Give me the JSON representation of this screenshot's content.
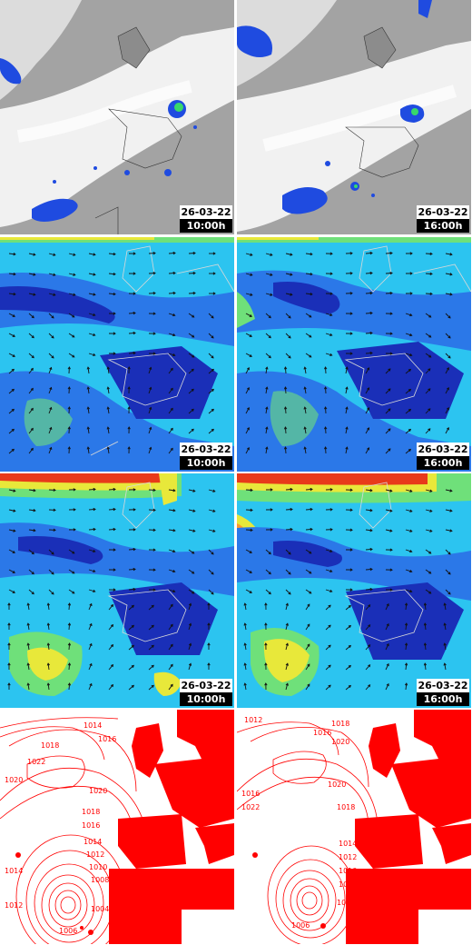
{
  "panels": [
    {
      "row": "satellite",
      "date": "26-03-22",
      "time": "10:00h"
    },
    {
      "row": "satellite",
      "date": "26-03-22",
      "time": "16:00h"
    },
    {
      "row": "wind-mid",
      "date": "26-03-22",
      "time": "10:00h"
    },
    {
      "row": "wind-mid",
      "date": "26-03-22",
      "time": "16:00h"
    },
    {
      "row": "wind-upper",
      "date": "26-03-22",
      "time": "10:00h"
    },
    {
      "row": "wind-upper",
      "date": "26-03-22",
      "time": "16:00h"
    },
    {
      "row": "pressure",
      "date": "",
      "time": ""
    },
    {
      "row": "pressure",
      "date": "",
      "time": ""
    }
  ],
  "isobars": {
    "left": [
      "1014",
      "1018",
      "1016",
      "1022",
      "1020",
      "1020",
      "1018",
      "1016",
      "1014",
      "1012",
      "1010",
      "1008",
      "1006",
      "1004",
      "1012",
      "1014"
    ],
    "right": [
      "1012",
      "1016",
      "1020",
      "1018",
      "1016",
      "1022",
      "1020",
      "1018",
      "1014",
      "1012",
      "1010",
      "1008",
      "1006",
      "1004"
    ]
  },
  "colors": {
    "land_grey": "#9e9e9e",
    "cloud_white": "#f2f2f2",
    "precip_blue": "#1f4be0",
    "precip_green": "#38d86a",
    "wind_deep_blue": "#1a2fb8",
    "wind_blue": "#2b78e8",
    "wind_cyan": "#2cc4f0",
    "wind_green": "#6fe07a",
    "wind_yellow": "#e8e83a",
    "wind_red": "#e83a1a",
    "isobar_red": "#ff0000",
    "coast_grey": "#c8c8c8"
  }
}
